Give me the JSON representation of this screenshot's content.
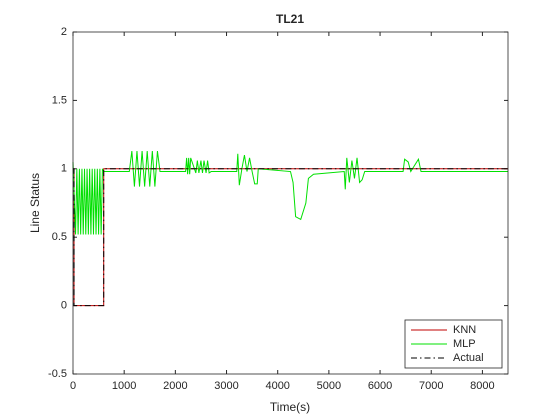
{
  "chart_data": {
    "type": "line",
    "title": "TL21",
    "xlabel": "Time(s)",
    "ylabel": "Line Status",
    "xlim": [
      0,
      8500
    ],
    "ylim": [
      -0.5,
      2
    ],
    "xticks": [
      0,
      1000,
      2000,
      3000,
      4000,
      5000,
      6000,
      7000,
      8000
    ],
    "yticks": [
      -0.5,
      0,
      0.5,
      1,
      1.5,
      2
    ],
    "legend_position": "southeast",
    "series": [
      {
        "name": "KNN",
        "color": "#c00000",
        "dash": "solid",
        "x": [
          0,
          20,
          20,
          600,
          600,
          8500
        ],
        "values": [
          1,
          1,
          0,
          0,
          1,
          1
        ]
      },
      {
        "name": "MLP",
        "color": "#00e000",
        "dash": "solid",
        "x": [
          0,
          50,
          75,
          100,
          125,
          150,
          175,
          200,
          225,
          250,
          275,
          300,
          325,
          350,
          375,
          400,
          425,
          450,
          475,
          500,
          525,
          550,
          575,
          600,
          1100,
          1150,
          1200,
          1250,
          1300,
          1350,
          1400,
          1450,
          1500,
          1550,
          1600,
          1650,
          1700,
          2200,
          2220,
          2240,
          2260,
          2280,
          2300,
          2400,
          2430,
          2460,
          2500,
          2530,
          2560,
          2600,
          2630,
          2660,
          2700,
          3200,
          3220,
          3250,
          3300,
          3350,
          3400,
          3450,
          3500,
          3550,
          3600,
          3620,
          4250,
          4300,
          4350,
          4450,
          4550,
          4600,
          4700,
          5300,
          5320,
          5350,
          5400,
          5450,
          5500,
          5550,
          5600,
          5650,
          5700,
          6450,
          6480,
          6550,
          6600,
          6750,
          6800,
          8500
        ],
        "values": [
          1.05,
          0.52,
          1.0,
          0.52,
          1.0,
          0.52,
          1.0,
          0.52,
          1.0,
          0.52,
          1.0,
          0.52,
          1.0,
          0.52,
          1.0,
          0.52,
          1.0,
          0.52,
          1.0,
          0.52,
          1.0,
          0.52,
          1.0,
          0.98,
          0.98,
          1.13,
          0.87,
          1.13,
          0.87,
          1.13,
          0.87,
          1.13,
          0.87,
          1.13,
          0.87,
          1.13,
          0.98,
          0.98,
          1.08,
          0.96,
          1.08,
          0.96,
          1.08,
          0.97,
          1.06,
          0.97,
          1.06,
          0.97,
          1.06,
          0.97,
          1.06,
          0.97,
          0.98,
          0.98,
          1.11,
          0.88,
          1.0,
          1.1,
          0.98,
          1.08,
          0.98,
          0.89,
          0.89,
          1.0,
          0.98,
          0.9,
          0.65,
          0.63,
          0.75,
          0.93,
          0.96,
          0.98,
          0.85,
          1.08,
          0.9,
          1.06,
          0.93,
          1.08,
          0.9,
          0.92,
          0.98,
          0.98,
          1.07,
          1.05,
          0.98,
          1.07,
          0.98,
          0.98
        ]
      },
      {
        "name": "Actual",
        "color": "#000000",
        "dash": "dashdot",
        "x": [
          0,
          20,
          20,
          600,
          600,
          8500
        ],
        "values": [
          1,
          1,
          0,
          0,
          1,
          1
        ]
      }
    ]
  }
}
